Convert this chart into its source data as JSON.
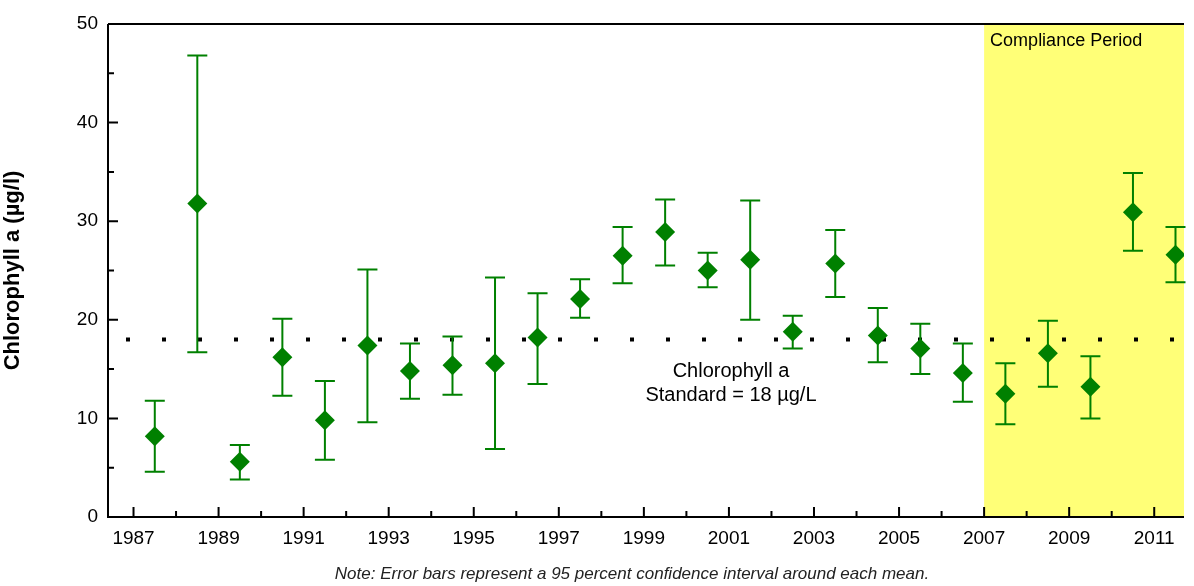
{
  "chart_data": {
    "type": "scatter",
    "ylabel": "Chlorophyll a (µg/l)",
    "marker": "diamond",
    "grid": false,
    "x": [
      1987.5,
      1988.5,
      1989.5,
      1990.5,
      1991.5,
      1992.5,
      1993.5,
      1994.5,
      1995.5,
      1996.5,
      1997.5,
      1998.5,
      1999.5,
      2000.5,
      2001.5,
      2002.5,
      2003.5,
      2004.5,
      2005.5,
      2006.5,
      2007.5,
      2008.5,
      2009.5,
      2010.5,
      2011.5
    ],
    "series": [
      {
        "color": "#008000",
        "values": [
          8.2,
          31.8,
          5.6,
          16.2,
          9.8,
          17.4,
          14.8,
          15.4,
          15.6,
          18.2,
          22.1,
          26.5,
          28.9,
          25.0,
          26.1,
          18.8,
          25.7,
          18.4,
          17.1,
          14.6,
          12.5,
          16.6,
          13.2,
          30.9,
          26.6
        ],
        "errors": [
          [
            4.6,
            11.8
          ],
          [
            16.7,
            46.8
          ],
          [
            3.8,
            7.3
          ],
          [
            12.3,
            20.1
          ],
          [
            5.8,
            13.8
          ],
          [
            9.6,
            25.1
          ],
          [
            12.0,
            17.6
          ],
          [
            12.4,
            18.3
          ],
          [
            6.9,
            24.3
          ],
          [
            13.5,
            22.7
          ],
          [
            20.2,
            24.1
          ],
          [
            23.7,
            29.4
          ],
          [
            25.5,
            32.2
          ],
          [
            23.3,
            26.8
          ],
          [
            20.0,
            32.1
          ],
          [
            17.1,
            20.4
          ],
          [
            22.3,
            29.1
          ],
          [
            15.7,
            21.2
          ],
          [
            14.5,
            19.6
          ],
          [
            11.7,
            17.6
          ],
          [
            9.4,
            15.6
          ],
          [
            13.2,
            19.9
          ],
          [
            10.0,
            16.3
          ],
          [
            27.0,
            34.9
          ],
          [
            23.8,
            29.4
          ]
        ]
      }
    ],
    "xlim": [
      1986.4,
      2011.7
    ],
    "xticks": [
      1987,
      {
        "value": 1988,
        "label": null
      },
      1989,
      {
        "value": 1990,
        "label": null
      },
      1991,
      {
        "value": 1992,
        "label": null
      },
      1993,
      {
        "value": 1994,
        "label": null
      },
      1995,
      {
        "value": 1996,
        "label": null
      },
      1997,
      {
        "value": 1998,
        "label": null
      },
      1999,
      {
        "value": 2000,
        "label": null
      },
      2001,
      {
        "value": 2002,
        "label": null
      },
      2003,
      {
        "value": 2004,
        "label": null
      },
      2005,
      {
        "value": 2006,
        "label": null
      },
      2007,
      {
        "value": 2008,
        "label": null
      },
      2009,
      {
        "value": 2010,
        "label": null
      },
      2011
    ],
    "ylim": [
      0,
      50
    ],
    "yticks": [
      0,
      {
        "value": 5,
        "label": null
      },
      10,
      {
        "value": 15,
        "label": null
      },
      20,
      {
        "value": 25,
        "label": null
      },
      30,
      {
        "value": 35,
        "label": null
      },
      40,
      {
        "value": 45,
        "label": null
      },
      50
    ],
    "ref_lines": [
      {
        "axis": "y",
        "value": 18,
        "label": "Chlorophyll a\nStandard = 18 µg/L",
        "color": "#000000",
        "line_style": "dotted"
      }
    ],
    "bands": [
      {
        "axis": "x",
        "from": 2007.0,
        "to": 2011.7,
        "label": "Compliance Period",
        "color": "#ffff77"
      }
    ],
    "annotations": [
      "Note: Error bars represent a 95 percent confidence interval around each mean."
    ]
  }
}
